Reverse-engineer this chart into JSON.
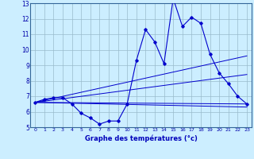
{
  "title": "Graphe des températures (°c)",
  "bg_color": "#cceeff",
  "line_color": "#0000cc",
  "grid_color": "#99bbcc",
  "border_color": "#336699",
  "xlim": [
    -0.5,
    23.5
  ],
  "ylim": [
    5,
    13
  ],
  "yticks": [
    5,
    6,
    7,
    8,
    9,
    10,
    11,
    12,
    13
  ],
  "xticks": [
    0,
    1,
    2,
    3,
    4,
    5,
    6,
    7,
    8,
    9,
    10,
    11,
    12,
    13,
    14,
    15,
    16,
    17,
    18,
    19,
    20,
    21,
    22,
    23
  ],
  "line1_x": [
    0,
    1,
    2,
    3,
    4,
    5,
    6,
    7,
    8,
    9,
    10,
    11,
    12,
    13,
    14,
    15,
    16,
    17,
    18,
    19,
    20,
    21,
    22,
    23
  ],
  "line1_y": [
    6.6,
    6.8,
    6.9,
    6.9,
    6.5,
    5.9,
    5.6,
    5.2,
    5.4,
    5.4,
    6.5,
    9.3,
    11.3,
    10.5,
    9.1,
    13.3,
    11.5,
    12.1,
    11.7,
    9.7,
    8.5,
    7.8,
    7.0,
    6.5
  ],
  "line2_x": [
    0,
    23
  ],
  "line2_y": [
    6.6,
    6.5
  ],
  "line3_x": [
    0,
    23
  ],
  "line3_y": [
    6.6,
    6.3
  ],
  "line4_x": [
    0,
    23
  ],
  "line4_y": [
    6.6,
    9.6
  ],
  "line5_x": [
    0,
    23
  ],
  "line5_y": [
    6.6,
    8.4
  ]
}
